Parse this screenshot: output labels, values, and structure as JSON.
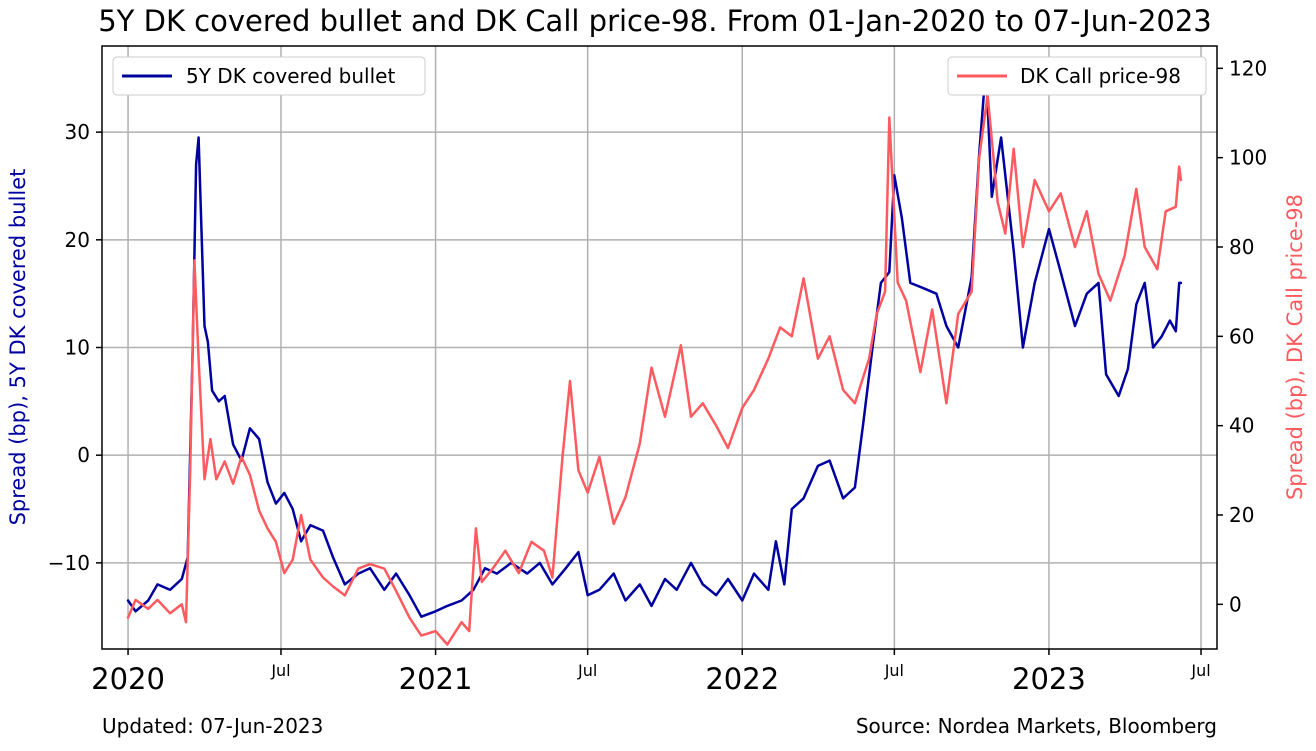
{
  "chart_data": {
    "type": "line",
    "title": "5Y DK covered bullet and DK Call price-98. From 01-Jan-2020 to 07-Jun-2023",
    "ylabel_left": "Spread (bp), 5Y DK covered bullet",
    "ylabel_right": "Spread (bp), DK Call price-98",
    "ylim_left": [
      -18,
      38
    ],
    "ylim_right": [
      -10,
      125
    ],
    "yticks_left": [
      -10,
      0,
      10,
      20,
      30
    ],
    "yticks_right": [
      0,
      20,
      40,
      60,
      80,
      100,
      120
    ],
    "xlim": [
      "2019-12-01",
      "2023-07-20"
    ],
    "xticks": [
      {
        "date": "2020-01-01",
        "label": "2020",
        "major": true
      },
      {
        "date": "2020-07-01",
        "label": "Jul",
        "major": false
      },
      {
        "date": "2021-01-01",
        "label": "2021",
        "major": true
      },
      {
        "date": "2021-07-01",
        "label": "Jul",
        "major": false
      },
      {
        "date": "2022-01-01",
        "label": "2022",
        "major": true
      },
      {
        "date": "2022-07-01",
        "label": "Jul",
        "major": false
      },
      {
        "date": "2023-01-01",
        "label": "2023",
        "major": true
      },
      {
        "date": "2023-07-01",
        "label": "Jul",
        "major": false
      }
    ],
    "grid": true,
    "series": [
      {
        "name": "5Y DK covered bullet",
        "axis": "left",
        "color": "#0000a0",
        "legend": "top-left",
        "points": [
          [
            "2020-01-01",
            -13.5
          ],
          [
            "2020-01-10",
            -14.5
          ],
          [
            "2020-01-25",
            -13.5
          ],
          [
            "2020-02-05",
            -12.0
          ],
          [
            "2020-02-20",
            -12.5
          ],
          [
            "2020-03-05",
            -11.5
          ],
          [
            "2020-03-12",
            -9.5
          ],
          [
            "2020-03-18",
            10.0
          ],
          [
            "2020-03-22",
            27.0
          ],
          [
            "2020-03-25",
            29.5
          ],
          [
            "2020-03-28",
            22.0
          ],
          [
            "2020-04-01",
            12.0
          ],
          [
            "2020-04-05",
            10.5
          ],
          [
            "2020-04-10",
            6.0
          ],
          [
            "2020-04-18",
            5.0
          ],
          [
            "2020-04-25",
            5.5
          ],
          [
            "2020-05-05",
            1.0
          ],
          [
            "2020-05-15",
            -0.5
          ],
          [
            "2020-05-25",
            2.5
          ],
          [
            "2020-06-05",
            1.5
          ],
          [
            "2020-06-15",
            -2.5
          ],
          [
            "2020-06-25",
            -4.5
          ],
          [
            "2020-07-05",
            -3.5
          ],
          [
            "2020-07-15",
            -5.0
          ],
          [
            "2020-07-25",
            -8.0
          ],
          [
            "2020-08-05",
            -6.5
          ],
          [
            "2020-08-20",
            -7.0
          ],
          [
            "2020-09-01",
            -9.5
          ],
          [
            "2020-09-15",
            -12.0
          ],
          [
            "2020-10-01",
            -11.0
          ],
          [
            "2020-10-15",
            -10.5
          ],
          [
            "2020-11-01",
            -12.5
          ],
          [
            "2020-11-15",
            -11.0
          ],
          [
            "2020-12-01",
            -13.0
          ],
          [
            "2020-12-15",
            -15.0
          ],
          [
            "2021-01-01",
            -14.5
          ],
          [
            "2021-01-15",
            -14.0
          ],
          [
            "2021-02-01",
            -13.5
          ],
          [
            "2021-02-15",
            -12.5
          ],
          [
            "2021-03-01",
            -10.5
          ],
          [
            "2021-03-15",
            -11.0
          ],
          [
            "2021-04-01",
            -10.0
          ],
          [
            "2021-04-20",
            -11.0
          ],
          [
            "2021-05-05",
            -10.0
          ],
          [
            "2021-05-20",
            -12.0
          ],
          [
            "2021-06-05",
            -10.5
          ],
          [
            "2021-06-20",
            -9.0
          ],
          [
            "2021-07-01",
            -13.0
          ],
          [
            "2021-07-15",
            -12.5
          ],
          [
            "2021-08-01",
            -11.0
          ],
          [
            "2021-08-15",
            -13.5
          ],
          [
            "2021-09-01",
            -12.0
          ],
          [
            "2021-09-15",
            -14.0
          ],
          [
            "2021-10-01",
            -11.5
          ],
          [
            "2021-10-15",
            -12.5
          ],
          [
            "2021-11-01",
            -10.0
          ],
          [
            "2021-11-15",
            -12.0
          ],
          [
            "2021-12-01",
            -13.0
          ],
          [
            "2021-12-15",
            -11.5
          ],
          [
            "2022-01-01",
            -13.5
          ],
          [
            "2022-01-15",
            -11.0
          ],
          [
            "2022-02-01",
            -12.5
          ],
          [
            "2022-02-10",
            -8.0
          ],
          [
            "2022-02-20",
            -12.0
          ],
          [
            "2022-03-01",
            -5.0
          ],
          [
            "2022-03-15",
            -4.0
          ],
          [
            "2022-04-01",
            -1.0
          ],
          [
            "2022-04-15",
            -0.5
          ],
          [
            "2022-05-01",
            -4.0
          ],
          [
            "2022-05-15",
            -3.0
          ],
          [
            "2022-05-25",
            3.0
          ],
          [
            "2022-06-05",
            10.0
          ],
          [
            "2022-06-15",
            16.0
          ],
          [
            "2022-06-25",
            17.0
          ],
          [
            "2022-07-01",
            26.0
          ],
          [
            "2022-07-10",
            22.0
          ],
          [
            "2022-07-20",
            16.0
          ],
          [
            "2022-08-05",
            15.5
          ],
          [
            "2022-08-20",
            15.0
          ],
          [
            "2022-09-01",
            12.0
          ],
          [
            "2022-09-15",
            10.0
          ],
          [
            "2022-10-01",
            16.5
          ],
          [
            "2022-10-10",
            28.0
          ],
          [
            "2022-10-18",
            36.0
          ],
          [
            "2022-10-25",
            24.0
          ],
          [
            "2022-11-05",
            29.5
          ],
          [
            "2022-11-20",
            19.0
          ],
          [
            "2022-12-01",
            10.0
          ],
          [
            "2022-12-15",
            16.0
          ],
          [
            "2023-01-01",
            21.0
          ],
          [
            "2023-01-15",
            17.0
          ],
          [
            "2023-02-01",
            12.0
          ],
          [
            "2023-02-15",
            15.0
          ],
          [
            "2023-03-01",
            16.0
          ],
          [
            "2023-03-10",
            7.5
          ],
          [
            "2023-03-25",
            5.5
          ],
          [
            "2023-04-05",
            8.0
          ],
          [
            "2023-04-15",
            14.0
          ],
          [
            "2023-04-25",
            16.0
          ],
          [
            "2023-05-05",
            10.0
          ],
          [
            "2023-05-15",
            11.0
          ],
          [
            "2023-05-25",
            12.5
          ],
          [
            "2023-06-01",
            11.5
          ],
          [
            "2023-06-05",
            16.0
          ],
          [
            "2023-06-07",
            16.0
          ]
        ]
      },
      {
        "name": "DK Call price-98",
        "axis": "right",
        "color": "#ff5a5f",
        "legend": "top-right",
        "points": [
          [
            "2020-01-01",
            -3.0
          ],
          [
            "2020-01-10",
            1.0
          ],
          [
            "2020-01-25",
            -1.0
          ],
          [
            "2020-02-05",
            1.0
          ],
          [
            "2020-02-20",
            -2.0
          ],
          [
            "2020-03-05",
            0.0
          ],
          [
            "2020-03-10",
            -4.0
          ],
          [
            "2020-03-15",
            30.0
          ],
          [
            "2020-03-20",
            77.0
          ],
          [
            "2020-03-25",
            55.0
          ],
          [
            "2020-04-01",
            28.0
          ],
          [
            "2020-04-08",
            37.0
          ],
          [
            "2020-04-15",
            28.0
          ],
          [
            "2020-04-25",
            32.0
          ],
          [
            "2020-05-05",
            27.0
          ],
          [
            "2020-05-15",
            33.0
          ],
          [
            "2020-05-25",
            29.0
          ],
          [
            "2020-06-05",
            21.0
          ],
          [
            "2020-06-15",
            17.0
          ],
          [
            "2020-06-25",
            14.0
          ],
          [
            "2020-07-05",
            7.0
          ],
          [
            "2020-07-15",
            10.0
          ],
          [
            "2020-07-25",
            20.0
          ],
          [
            "2020-08-05",
            10.0
          ],
          [
            "2020-08-20",
            6.0
          ],
          [
            "2020-09-01",
            4.0
          ],
          [
            "2020-09-15",
            2.0
          ],
          [
            "2020-10-01",
            8.0
          ],
          [
            "2020-10-15",
            9.0
          ],
          [
            "2020-11-01",
            8.0
          ],
          [
            "2020-11-15",
            3.0
          ],
          [
            "2020-12-01",
            -3.0
          ],
          [
            "2020-12-15",
            -7.0
          ],
          [
            "2021-01-01",
            -6.0
          ],
          [
            "2021-01-15",
            -9.0
          ],
          [
            "2021-02-01",
            -4.0
          ],
          [
            "2021-02-10",
            -6.0
          ],
          [
            "2021-02-18",
            17.0
          ],
          [
            "2021-02-25",
            5.0
          ],
          [
            "2021-03-10",
            8.0
          ],
          [
            "2021-03-25",
            12.0
          ],
          [
            "2021-04-10",
            7.0
          ],
          [
            "2021-04-25",
            14.0
          ],
          [
            "2021-05-10",
            12.0
          ],
          [
            "2021-05-20",
            6.0
          ],
          [
            "2021-06-01",
            33.0
          ],
          [
            "2021-06-10",
            50.0
          ],
          [
            "2021-06-20",
            30.0
          ],
          [
            "2021-07-01",
            25.0
          ],
          [
            "2021-07-15",
            33.0
          ],
          [
            "2021-08-01",
            18.0
          ],
          [
            "2021-08-15",
            24.0
          ],
          [
            "2021-09-01",
            36.0
          ],
          [
            "2021-09-15",
            53.0
          ],
          [
            "2021-10-01",
            42.0
          ],
          [
            "2021-10-20",
            58.0
          ],
          [
            "2021-11-01",
            42.0
          ],
          [
            "2021-11-15",
            45.0
          ],
          [
            "2021-12-01",
            40.0
          ],
          [
            "2021-12-15",
            35.0
          ],
          [
            "2022-01-01",
            44.0
          ],
          [
            "2022-01-15",
            48.0
          ],
          [
            "2022-02-01",
            55.0
          ],
          [
            "2022-02-15",
            62.0
          ],
          [
            "2022-03-01",
            60.0
          ],
          [
            "2022-03-15",
            73.0
          ],
          [
            "2022-04-01",
            55.0
          ],
          [
            "2022-04-15",
            60.0
          ],
          [
            "2022-05-01",
            48.0
          ],
          [
            "2022-05-15",
            45.0
          ],
          [
            "2022-06-01",
            55.0
          ],
          [
            "2022-06-10",
            65.0
          ],
          [
            "2022-06-20",
            70.0
          ],
          [
            "2022-06-25",
            109.0
          ],
          [
            "2022-07-05",
            72.0
          ],
          [
            "2022-07-15",
            68.0
          ],
          [
            "2022-08-01",
            52.0
          ],
          [
            "2022-08-15",
            66.0
          ],
          [
            "2022-09-01",
            45.0
          ],
          [
            "2022-09-15",
            65.0
          ],
          [
            "2022-10-01",
            70.0
          ],
          [
            "2022-10-10",
            100.0
          ],
          [
            "2022-10-20",
            114.0
          ],
          [
            "2022-11-01",
            90.0
          ],
          [
            "2022-11-10",
            83.0
          ],
          [
            "2022-11-20",
            102.0
          ],
          [
            "2022-12-01",
            80.0
          ],
          [
            "2022-12-15",
            95.0
          ],
          [
            "2023-01-01",
            88.0
          ],
          [
            "2023-01-15",
            92.0
          ],
          [
            "2023-02-01",
            80.0
          ],
          [
            "2023-02-15",
            88.0
          ],
          [
            "2023-03-01",
            74.0
          ],
          [
            "2023-03-15",
            68.0
          ],
          [
            "2023-04-01",
            78.0
          ],
          [
            "2023-04-15",
            93.0
          ],
          [
            "2023-04-25",
            80.0
          ],
          [
            "2023-05-10",
            75.0
          ],
          [
            "2023-05-20",
            88.0
          ],
          [
            "2023-06-01",
            89.0
          ],
          [
            "2023-06-05",
            98.0
          ],
          [
            "2023-06-07",
            95.0
          ]
        ]
      }
    ],
    "footer_left": "Updated: 07-Jun-2023",
    "footer_right": "Source: Nordea Markets, Bloomberg"
  }
}
